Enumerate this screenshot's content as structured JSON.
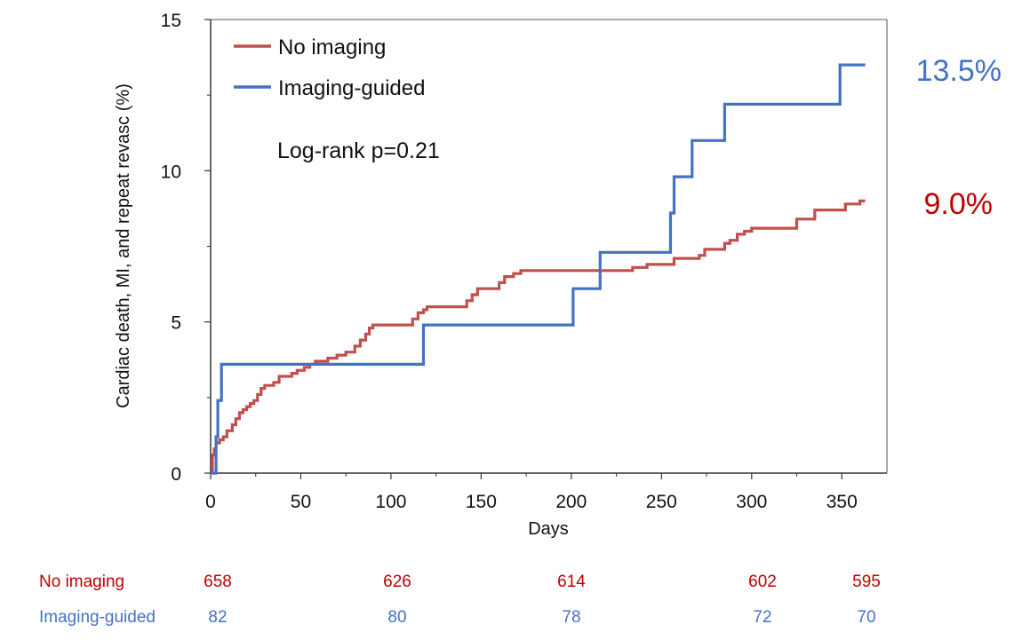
{
  "chart_data": {
    "type": "line",
    "subtype": "kaplan-meier-cumulative-incidence",
    "xlabel": "Days",
    "ylabel": "Cardiac death, MI, and repeat revasc (%)",
    "xlim": [
      0,
      375
    ],
    "ylim": [
      0,
      15
    ],
    "xticks": [
      0,
      50,
      100,
      150,
      200,
      250,
      300,
      350
    ],
    "yticks": [
      0,
      5,
      10,
      15
    ],
    "annotation": "Log-rank p=0.21",
    "colors": {
      "no_imaging": "#c0504d",
      "imaging_guided": "#4472c4",
      "risk_no_imaging": "#c00000",
      "risk_imaging": "#4472c4"
    },
    "series": [
      {
        "name": "No imaging",
        "color": "#c0504d",
        "final_label": "9.0%",
        "points": [
          [
            0,
            0
          ],
          [
            1,
            0.6
          ],
          [
            2,
            0.8
          ],
          [
            3,
            1.0
          ],
          [
            5,
            1.1
          ],
          [
            7,
            1.2
          ],
          [
            9,
            1.4
          ],
          [
            12,
            1.6
          ],
          [
            14,
            1.8
          ],
          [
            16,
            2.0
          ],
          [
            18,
            2.1
          ],
          [
            20,
            2.2
          ],
          [
            22,
            2.3
          ],
          [
            24,
            2.4
          ],
          [
            26,
            2.6
          ],
          [
            28,
            2.8
          ],
          [
            30,
            2.9
          ],
          [
            35,
            3.0
          ],
          [
            38,
            3.2
          ],
          [
            45,
            3.3
          ],
          [
            48,
            3.4
          ],
          [
            52,
            3.5
          ],
          [
            55,
            3.6
          ],
          [
            58,
            3.7
          ],
          [
            65,
            3.8
          ],
          [
            70,
            3.9
          ],
          [
            75,
            4.0
          ],
          [
            80,
            4.2
          ],
          [
            83,
            4.4
          ],
          [
            86,
            4.6
          ],
          [
            88,
            4.8
          ],
          [
            90,
            4.9
          ],
          [
            112,
            5.1
          ],
          [
            115,
            5.3
          ],
          [
            118,
            5.4
          ],
          [
            120,
            5.5
          ],
          [
            142,
            5.7
          ],
          [
            145,
            5.9
          ],
          [
            148,
            6.1
          ],
          [
            160,
            6.3
          ],
          [
            163,
            6.5
          ],
          [
            168,
            6.6
          ],
          [
            172,
            6.7
          ],
          [
            234,
            6.8
          ],
          [
            242,
            6.9
          ],
          [
            257,
            7.1
          ],
          [
            271,
            7.2
          ],
          [
            274,
            7.4
          ],
          [
            285,
            7.6
          ],
          [
            288,
            7.7
          ],
          [
            292,
            7.9
          ],
          [
            296,
            8.0
          ],
          [
            300,
            8.1
          ],
          [
            325,
            8.4
          ],
          [
            335,
            8.7
          ],
          [
            352,
            8.9
          ],
          [
            360,
            9.0
          ],
          [
            363,
            9.0
          ]
        ]
      },
      {
        "name": "Imaging-guided",
        "color": "#4472c4",
        "final_label": "13.5%",
        "points": [
          [
            0,
            0
          ],
          [
            2,
            0
          ],
          [
            3,
            1.2
          ],
          [
            4,
            2.4
          ],
          [
            6,
            3.6
          ],
          [
            117,
            3.6
          ],
          [
            118,
            4.9
          ],
          [
            200,
            4.9
          ],
          [
            201,
            6.1
          ],
          [
            215,
            6.1
          ],
          [
            216,
            7.3
          ],
          [
            254,
            7.3
          ],
          [
            255,
            8.6
          ],
          [
            257,
            9.8
          ],
          [
            266,
            9.8
          ],
          [
            267,
            11.0
          ],
          [
            284,
            11.0
          ],
          [
            285,
            12.2
          ],
          [
            348,
            12.2
          ],
          [
            349,
            13.5
          ],
          [
            363,
            13.5
          ]
        ]
      }
    ],
    "risk_table": {
      "rows": [
        {
          "label": "No imaging",
          "values": [
            "658",
            "626",
            "614",
            "602",
            "595"
          ]
        },
        {
          "label": "Imaging-guided",
          "values": [
            "82",
            "80",
            "78",
            "72",
            "70"
          ]
        }
      ],
      "days": [
        0,
        100,
        200,
        300,
        360
      ]
    }
  }
}
